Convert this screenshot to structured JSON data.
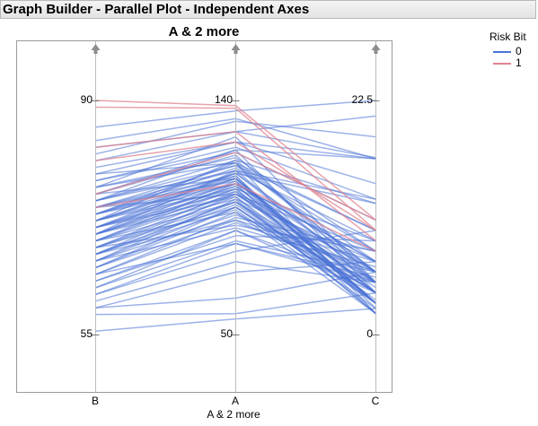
{
  "window": {
    "title": "Graph Builder - Parallel Plot - Independent Axes"
  },
  "plot": {
    "title": "A & 2 more",
    "x_title": "A & 2 more"
  },
  "axes": [
    {
      "name": "B",
      "top_label": "90",
      "bottom_label": "55"
    },
    {
      "name": "A",
      "top_label": "140",
      "bottom_label": "50"
    },
    {
      "name": "C",
      "top_label": "22.5",
      "bottom_label": "0"
    }
  ],
  "legend": {
    "title": "Risk Bit",
    "items": [
      {
        "label": "0",
        "color": "#4a72d6"
      },
      {
        "label": "1",
        "color": "#e0838f"
      }
    ]
  },
  "icons": {
    "axis_handle": "up-arrow-icon"
  },
  "chart_data": {
    "type": "line",
    "title": "A & 2 more",
    "xlabel": "A & 2 more",
    "categories": [
      "B",
      "A",
      "C"
    ],
    "axis_ranges": {
      "B": [
        55,
        90
      ],
      "A": [
        50,
        140
      ],
      "C": [
        0,
        22.5
      ]
    },
    "grid": true,
    "legend_placement": "right",
    "series": [
      {
        "name": "0",
        "color": "#4a72d6",
        "lines": [
          [
            86,
            136,
            22.5
          ],
          [
            84,
            133,
            16.9
          ],
          [
            83,
            128,
            21
          ],
          [
            82,
            132,
            19
          ],
          [
            81,
            128,
            17
          ],
          [
            80,
            124,
            16.9
          ],
          [
            79,
            124,
            14.5
          ],
          [
            78,
            122,
            13
          ],
          [
            78,
            120,
            11
          ],
          [
            77,
            118,
            8
          ],
          [
            77,
            116,
            6
          ],
          [
            76,
            121,
            4
          ],
          [
            76,
            119,
            5
          ],
          [
            75,
            117,
            6
          ],
          [
            75,
            115,
            7
          ],
          [
            75,
            113,
            9
          ],
          [
            74,
            113,
            5
          ],
          [
            74,
            111,
            3
          ],
          [
            74,
            115,
            10
          ],
          [
            74,
            109,
            4
          ],
          [
            73,
            112,
            6
          ],
          [
            73,
            110,
            3
          ],
          [
            73,
            108,
            2
          ],
          [
            73,
            114,
            8
          ],
          [
            72,
            112,
            5
          ],
          [
            72,
            110,
            4
          ],
          [
            72,
            108,
            7
          ],
          [
            72,
            106,
            3
          ],
          [
            72,
            111,
            2.5
          ],
          [
            71,
            110,
            4
          ],
          [
            71,
            108,
            6
          ],
          [
            71,
            105,
            3
          ],
          [
            71,
            112,
            12.6
          ],
          [
            71,
            107,
            5
          ],
          [
            70,
            109,
            3
          ],
          [
            70,
            107,
            4
          ],
          [
            70,
            104,
            6
          ],
          [
            70,
            102,
            2
          ],
          [
            70,
            106,
            9
          ],
          [
            69,
            106,
            3
          ],
          [
            69,
            104,
            5
          ],
          [
            69,
            101,
            4
          ],
          [
            69,
            108,
            7
          ],
          [
            68,
            103,
            2
          ],
          [
            68,
            99,
            4
          ],
          [
            68,
            105,
            6
          ],
          [
            68,
            101,
            3
          ],
          [
            67,
            101,
            5
          ],
          [
            67,
            98,
            2.5
          ],
          [
            67,
            104,
            8
          ],
          [
            67,
            100,
            4
          ],
          [
            66,
            99,
            3
          ],
          [
            66,
            96,
            6
          ],
          [
            66,
            102,
            7
          ],
          [
            65,
            97,
            4
          ],
          [
            65,
            94,
            5
          ],
          [
            65,
            99,
            3
          ],
          [
            64,
            93,
            6
          ],
          [
            64,
            95,
            8
          ],
          [
            63,
            90,
            5
          ],
          [
            63,
            88,
            9
          ],
          [
            62,
            86,
            6
          ],
          [
            62,
            90,
            4
          ],
          [
            61,
            85,
            5
          ],
          [
            61,
            82,
            10
          ],
          [
            60,
            78,
            5
          ],
          [
            59,
            74,
            7
          ],
          [
            59,
            64,
            6
          ],
          [
            58,
            58,
            4
          ],
          [
            75,
            121,
            16.9
          ],
          [
            73,
            116,
            10
          ],
          [
            77,
            126,
            5
          ],
          [
            71,
            103,
            3.3
          ],
          [
            69,
            97,
            2
          ],
          [
            72,
            117,
            12.6
          ],
          [
            66,
            91,
            6.5
          ],
          [
            64,
            85,
            5.5
          ],
          [
            68,
            92,
            8
          ],
          [
            79,
            116,
            2
          ],
          [
            76,
            110,
            3
          ],
          [
            74,
            104,
            4.5
          ],
          [
            55.5,
            56,
            2.5
          ],
          [
            70,
            113,
            13
          ],
          [
            67,
            94,
            7
          ]
        ]
      },
      {
        "name": "1",
        "color": "#e0838f",
        "lines": [
          [
            90,
            138,
            11
          ],
          [
            89,
            137,
            10
          ],
          [
            83,
            128,
            9
          ],
          [
            81,
            124,
            10
          ],
          [
            76,
            120,
            11
          ],
          [
            74,
            108,
            8
          ]
        ]
      }
    ]
  }
}
